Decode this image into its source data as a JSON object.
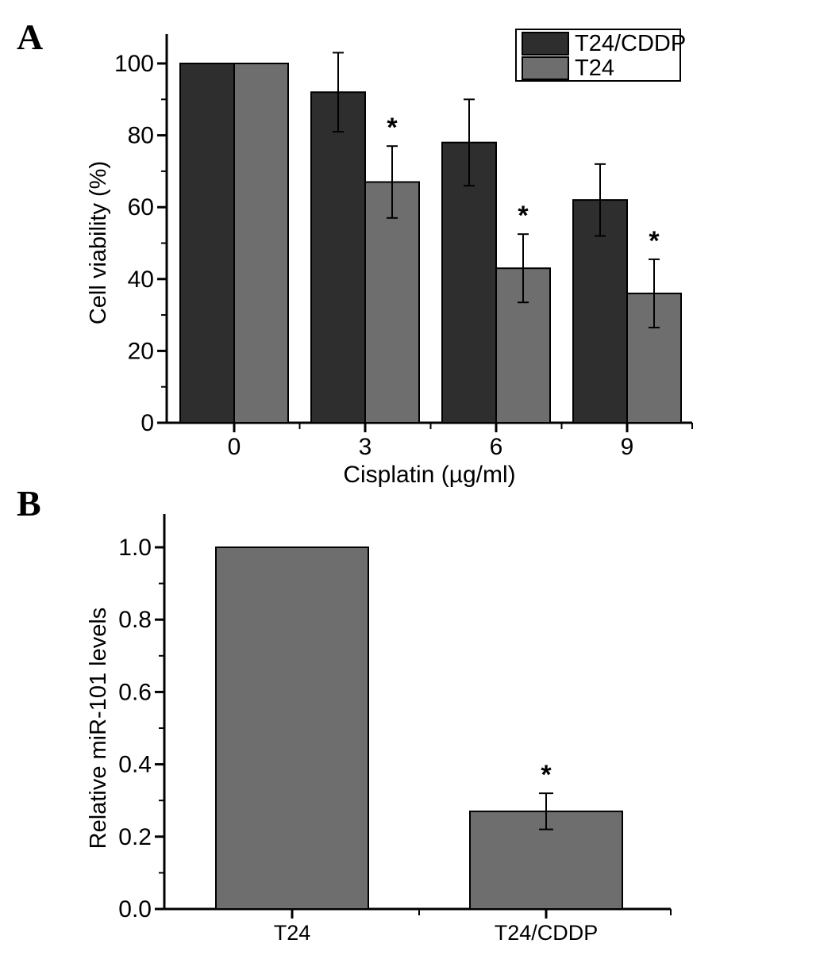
{
  "page": {
    "background": "#ffffff",
    "text_color": "#000000"
  },
  "panels": {
    "a": {
      "letter": "A"
    },
    "b": {
      "letter": "B"
    }
  },
  "chart_data": [
    {
      "id": "panel-a",
      "type": "bar",
      "panel_letter": "A",
      "title": "",
      "xlabel": "Cisplatin (µg/ml)",
      "ylabel": "Cell viability (%)",
      "categories": [
        "0",
        "3",
        "6",
        "9"
      ],
      "series": [
        {
          "name": "T24/CDDP",
          "color": "#2e2e2e",
          "values": [
            100,
            92,
            78,
            62
          ],
          "errors": [
            null,
            11,
            12,
            10
          ],
          "significant": [
            false,
            false,
            false,
            false
          ]
        },
        {
          "name": "T24",
          "color": "#6e6e6e",
          "values": [
            100,
            67,
            43,
            36
          ],
          "errors": [
            null,
            10,
            9.5,
            9.5
          ],
          "significant": [
            false,
            true,
            true,
            true
          ]
        }
      ],
      "ylim": [
        0,
        108
      ],
      "yticks": [
        0,
        20,
        40,
        60,
        80,
        100
      ],
      "ytick_labels": [
        "0",
        "20",
        "40",
        "60",
        "80",
        "100"
      ],
      "ytick_minor": [
        10,
        30,
        50,
        70,
        90
      ],
      "grid": false,
      "legend_position": "top-right",
      "legend_entries": [
        "T24/CDDP",
        "T24"
      ],
      "significance_marker": "*",
      "bar_outline_color": "#000000"
    },
    {
      "id": "panel-b",
      "type": "bar",
      "panel_letter": "B",
      "title": "",
      "xlabel": "",
      "ylabel": "Relative miR-101 levels",
      "categories": [
        "T24",
        "T24/CDDP"
      ],
      "series": [
        {
          "name": "",
          "color": "#6e6e6e",
          "values": [
            1.0,
            0.27
          ],
          "errors": [
            null,
            0.05
          ],
          "significant": [
            false,
            true
          ]
        }
      ],
      "ylim": [
        0,
        1.09
      ],
      "yticks": [
        0,
        0.2,
        0.4,
        0.6,
        0.8,
        1.0
      ],
      "ytick_labels": [
        "0.0",
        "0.2",
        "0.4",
        "0.6",
        "0.8",
        "1.0"
      ],
      "ytick_minor": [
        0.1,
        0.3,
        0.5,
        0.7,
        0.9
      ],
      "grid": false,
      "legend_position": null,
      "legend_entries": [],
      "significance_marker": "*",
      "bar_outline_color": "#000000"
    }
  ]
}
